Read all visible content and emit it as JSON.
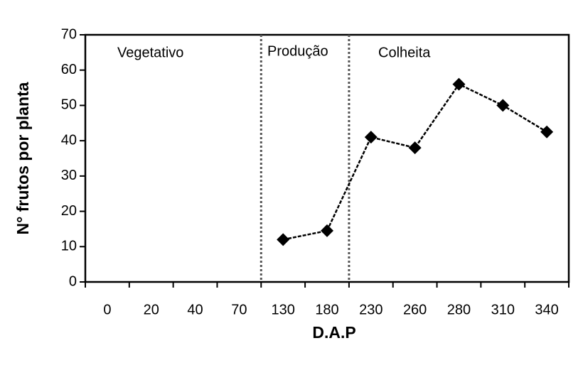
{
  "chart_data": {
    "type": "line",
    "xlabel": "D.A.P",
    "ylabel": "N° frutos por planta",
    "categories": [
      "0",
      "20",
      "40",
      "70",
      "130",
      "180",
      "230",
      "260",
      "280",
      "310",
      "340"
    ],
    "values": [
      null,
      null,
      null,
      null,
      12,
      14.5,
      41,
      38,
      56,
      50,
      42.5
    ],
    "color": "#000000",
    "ylim": [
      0,
      70
    ],
    "yticks": [
      0,
      10,
      20,
      30,
      40,
      50,
      60,
      70
    ],
    "annotations": [
      "Vegetativo",
      "Produção",
      "Colheita"
    ]
  }
}
